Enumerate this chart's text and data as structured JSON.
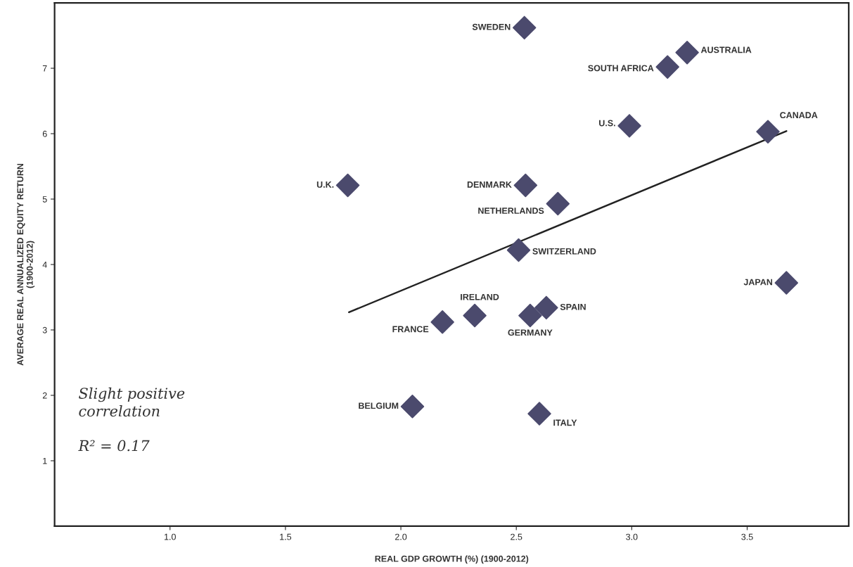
{
  "chart_data": {
    "type": "scatter",
    "xlabel": "REAL GDP GROWTH (%) (1900-2012)",
    "ylabel": "AVERAGE REAL ANNUALIZED EQUITY RETURN\n(1900-2012)",
    "xlim": [
      0.5,
      3.94
    ],
    "ylim": [
      0,
      8
    ],
    "xticks": [
      {
        "value": 1,
        "label": "1.0"
      },
      {
        "value": 1.5,
        "label": "1.5"
      },
      {
        "value": 2,
        "label": "2.0"
      },
      {
        "value": 2.5,
        "label": "2.5"
      },
      {
        "value": 3,
        "label": "3.0"
      },
      {
        "value": 3.5,
        "label": "3.5"
      }
    ],
    "yticks": [
      1,
      2,
      3,
      4,
      5,
      6,
      7
    ],
    "grid": false,
    "legend": false,
    "series": [
      {
        "marker": "diamond",
        "color": "#4b4a6d",
        "x": [
          2.535,
          3.24,
          3.155,
          2.99,
          3.59,
          1.77,
          2.54,
          2.68,
          2.51,
          3.67,
          2.32,
          2.18,
          2.56,
          2.63,
          2.05,
          2.6
        ],
        "values": [
          7.62,
          7.24,
          7.02,
          6.12,
          6.03,
          5.21,
          5.21,
          4.93,
          4.22,
          3.72,
          3.22,
          3.12,
          3.22,
          3.34,
          1.83,
          1.72
        ]
      },
      {
        "type": "line",
        "color": "#222222",
        "line_style": "solid",
        "x": [
          1.775,
          3.67
        ],
        "values": [
          3.27,
          6.04
        ]
      }
    ],
    "annotations": [
      {
        "text": "SWEDEN",
        "x": 2.535,
        "y": 7.62
      },
      {
        "text": "AUSTRALIA",
        "x": 3.24,
        "y": 7.24
      },
      {
        "text": "SOUTH AFRICA",
        "x": 3.155,
        "y": 7.02
      },
      {
        "text": "U.S.",
        "x": 2.99,
        "y": 6.12
      },
      {
        "text": "CANADA",
        "x": 3.59,
        "y": 6.03
      },
      {
        "text": "U.K.",
        "x": 1.77,
        "y": 5.21
      },
      {
        "text": "DENMARK",
        "x": 2.54,
        "y": 5.21
      },
      {
        "text": "NETHERLANDS",
        "x": 2.68,
        "y": 4.93
      },
      {
        "text": "SWITZERLAND",
        "x": 2.51,
        "y": 4.22
      },
      {
        "text": "JAPAN",
        "x": 3.67,
        "y": 3.72
      },
      {
        "text": "IRELAND",
        "x": 2.32,
        "y": 3.22
      },
      {
        "text": "FRANCE",
        "x": 2.18,
        "y": 3.12
      },
      {
        "text": "GERMANY",
        "x": 2.56,
        "y": 3.22
      },
      {
        "text": "SPAIN",
        "x": 2.63,
        "y": 3.34
      },
      {
        "text": "BELGIUM",
        "x": 2.05,
        "y": 1.83
      },
      {
        "text": "ITALY",
        "x": 2.6,
        "y": 1.72
      },
      "Slight positive\ncorrelation",
      "R² = 0.17"
    ]
  }
}
